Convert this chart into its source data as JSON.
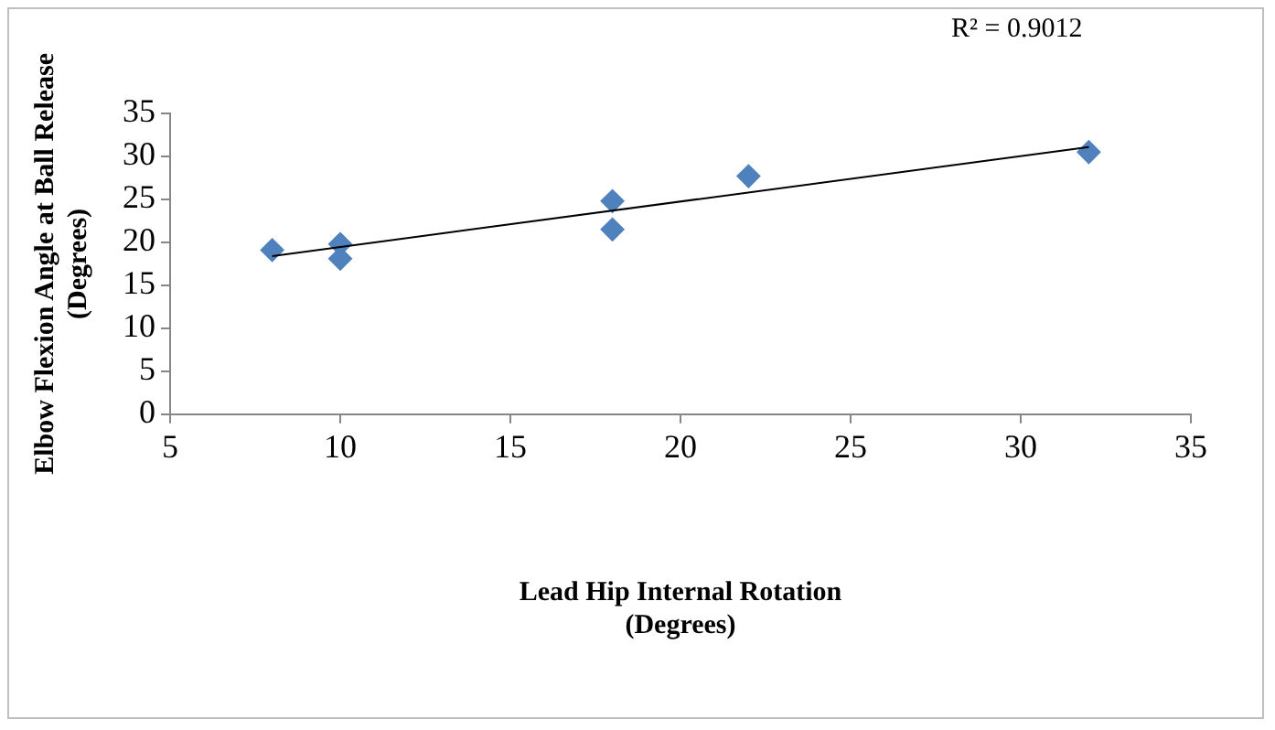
{
  "chart_data": {
    "type": "scatter",
    "xlabel": "Lead Hip Internal Rotation\n(Degrees)",
    "ylabel": "Elbow Flexion Angle at Ball Release\n(Degrees)",
    "annotations": [
      "R² = 0.9012"
    ],
    "series": [
      {
        "type": "scatter",
        "color": "#4f81bd",
        "marker": "diamond",
        "x": [
          8,
          10,
          10,
          18,
          18,
          22,
          32
        ],
        "values": [
          19.1,
          19.8,
          18.1,
          24.8,
          21.5,
          27.7,
          30.5
        ]
      },
      {
        "type": "line",
        "color": "#000000",
        "marker": "none",
        "x": [
          8,
          32
        ],
        "values": [
          18.4,
          31.1
        ]
      }
    ],
    "xlim": [
      5,
      35
    ],
    "xticks": [
      5,
      10,
      15,
      20,
      25,
      30,
      35
    ],
    "ylim": [
      0,
      35
    ],
    "yticks": [
      0,
      5,
      10,
      15,
      20,
      25,
      30,
      35
    ],
    "grid": false,
    "legend": false
  }
}
